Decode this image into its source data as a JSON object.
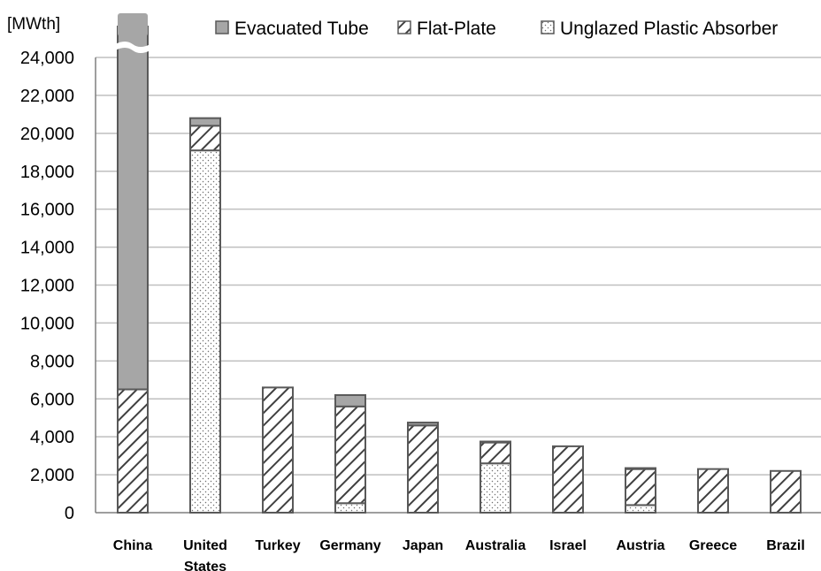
{
  "chart_data": {
    "type": "bar",
    "stacked": true,
    "unit_label": "[MWth]",
    "categories": [
      [
        "China"
      ],
      [
        "United",
        "States"
      ],
      [
        "Turkey"
      ],
      [
        "Germany"
      ],
      [
        "Japan"
      ],
      [
        "Australia"
      ],
      [
        "Israel"
      ],
      [
        "Austria"
      ],
      [
        "Greece"
      ],
      [
        "Brazil"
      ]
    ],
    "series": [
      {
        "name": "Unglazed Plastic Absorber",
        "pattern": "dots",
        "values": [
          0,
          19100,
          0,
          500,
          0,
          2600,
          0,
          400,
          0,
          0
        ]
      },
      {
        "name": "Flat-Plate",
        "pattern": "hatch",
        "values": [
          6500,
          1300,
          6600,
          5100,
          4600,
          1100,
          3500,
          1900,
          2300,
          2200
        ]
      },
      {
        "name": "Evacuated Tube",
        "pattern": "solid",
        "color": "#a6a6a6",
        "values": [
          60000,
          400,
          0,
          600,
          150,
          50,
          0,
          50,
          0,
          0
        ]
      }
    ],
    "legend_order": [
      "Evacuated Tube",
      "Flat-Plate",
      "Unglazed Plastic Absorber"
    ],
    "ylim": [
      0,
      24000
    ],
    "yticks": [
      "0",
      "2,000",
      "4,000",
      "6,000",
      "8,000",
      "10,000",
      "12,000",
      "14,000",
      "16,000",
      "18,000",
      "20,000",
      "22,000",
      "24,000"
    ],
    "grid": true,
    "legend_position": "top-right",
    "axis_break": "China bar exceeds axis maximum"
  }
}
